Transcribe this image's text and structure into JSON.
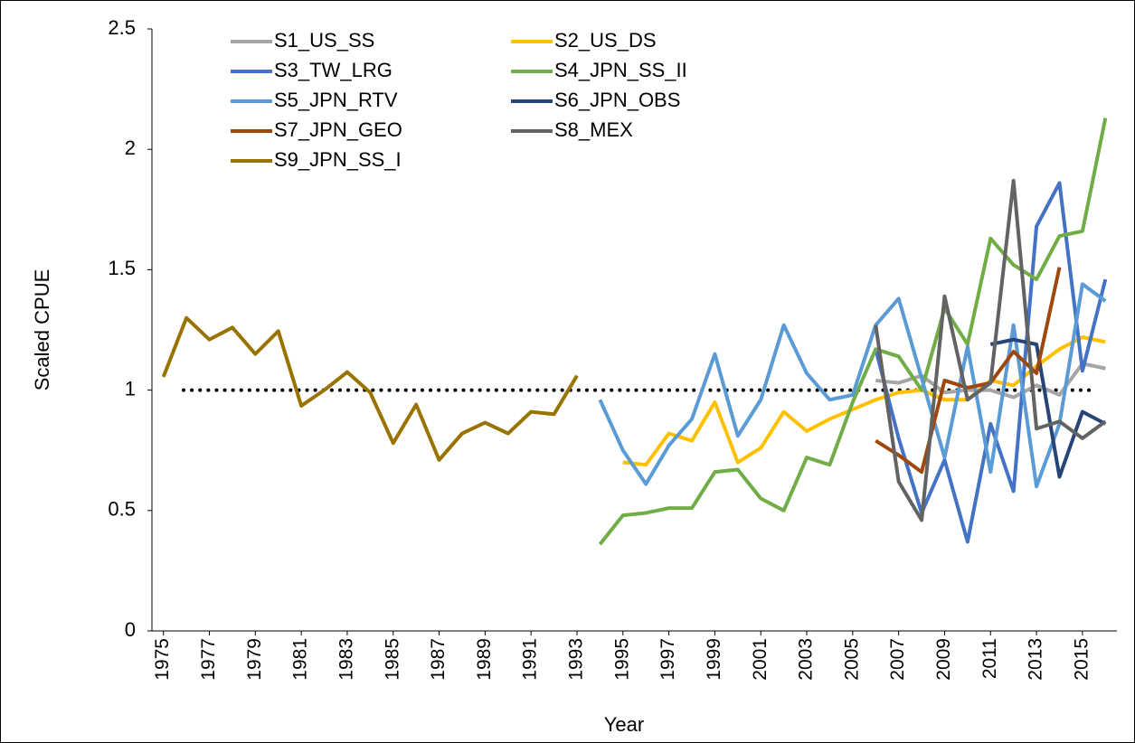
{
  "chart_data": {
    "type": "line",
    "x": [
      1975,
      1976,
      1977,
      1978,
      1979,
      1980,
      1981,
      1982,
      1983,
      1984,
      1985,
      1986,
      1987,
      1988,
      1989,
      1990,
      1991,
      1992,
      1993,
      1994,
      1995,
      1996,
      1997,
      1998,
      1999,
      2000,
      2001,
      2002,
      2003,
      2004,
      2005,
      2006,
      2007,
      2008,
      2009,
      2010,
      2011,
      2012,
      2013,
      2014,
      2015,
      2016
    ],
    "xlim": [
      1974.5,
      2016.5
    ],
    "xticks": [
      1975,
      1977,
      1979,
      1981,
      1983,
      1985,
      1987,
      1989,
      1991,
      1993,
      1995,
      1997,
      1999,
      2001,
      2003,
      2005,
      2007,
      2009,
      2011,
      2013,
      2015
    ],
    "ylim": [
      0,
      2.5
    ],
    "yticks": [
      0,
      0.5,
      1,
      1.5,
      2,
      2.5
    ],
    "xlabel": "Year",
    "ylabel": "Scaled CPUE",
    "reference_line": 1,
    "grid": false,
    "legend": "upper left",
    "series": [
      {
        "name": "S1_US_SS",
        "color": "#a5a5a5",
        "values": [
          null,
          null,
          null,
          null,
          null,
          null,
          null,
          null,
          null,
          null,
          null,
          null,
          null,
          null,
          null,
          null,
          null,
          null,
          null,
          null,
          null,
          null,
          null,
          null,
          null,
          null,
          null,
          null,
          null,
          null,
          null,
          1.04,
          1.03,
          1.06,
          0.99,
          1.0,
          1.0,
          0.97,
          1.02,
          0.98,
          1.11,
          1.09
        ]
      },
      {
        "name": "S2_US_DS",
        "color": "#ffc000",
        "values": [
          null,
          null,
          null,
          null,
          null,
          null,
          null,
          null,
          null,
          null,
          null,
          null,
          null,
          null,
          null,
          null,
          null,
          null,
          null,
          null,
          0.7,
          0.69,
          0.82,
          0.79,
          0.95,
          0.7,
          0.76,
          0.91,
          0.83,
          0.88,
          0.92,
          0.96,
          0.99,
          1.0,
          0.96,
          0.96,
          1.04,
          1.02,
          1.1,
          1.17,
          1.22,
          1.2
        ]
      },
      {
        "name": "S3_TW_LRG",
        "color": "#4472c4",
        "values": [
          null,
          null,
          null,
          null,
          null,
          null,
          null,
          null,
          null,
          null,
          null,
          null,
          null,
          null,
          null,
          null,
          null,
          null,
          null,
          null,
          null,
          null,
          null,
          null,
          null,
          null,
          null,
          null,
          null,
          null,
          null,
          1.17,
          0.8,
          0.49,
          0.71,
          0.37,
          0.86,
          0.58,
          1.68,
          1.86,
          1.08,
          1.46
        ]
      },
      {
        "name": "S4_JPN_SS_II",
        "color": "#70ad47",
        "values": [
          null,
          null,
          null,
          null,
          null,
          null,
          null,
          null,
          null,
          null,
          null,
          null,
          null,
          null,
          null,
          null,
          null,
          null,
          null,
          0.36,
          0.48,
          0.49,
          0.51,
          0.51,
          0.66,
          0.67,
          0.55,
          0.5,
          0.72,
          0.69,
          0.95,
          1.17,
          1.14,
          1.0,
          1.34,
          1.19,
          1.63,
          1.52,
          1.46,
          1.64,
          1.66,
          2.13
        ]
      },
      {
        "name": "S5_JPN_RTV",
        "color": "#5b9bd5",
        "values": [
          null,
          null,
          null,
          null,
          null,
          null,
          null,
          null,
          null,
          null,
          null,
          null,
          null,
          null,
          null,
          null,
          null,
          null,
          null,
          0.96,
          0.75,
          0.61,
          0.77,
          0.88,
          1.15,
          0.81,
          0.96,
          1.27,
          1.07,
          0.96,
          0.98,
          1.27,
          1.38,
          1.05,
          0.72,
          1.18,
          0.66,
          1.27,
          0.6,
          0.86,
          1.44,
          1.37
        ]
      },
      {
        "name": "S6_JPN_OBS",
        "color": "#264478",
        "values": [
          null,
          null,
          null,
          null,
          null,
          null,
          null,
          null,
          null,
          null,
          null,
          null,
          null,
          null,
          null,
          null,
          null,
          null,
          null,
          null,
          null,
          null,
          null,
          null,
          null,
          null,
          null,
          null,
          null,
          null,
          null,
          null,
          null,
          null,
          null,
          null,
          1.19,
          1.21,
          1.19,
          0.64,
          0.91,
          0.86
        ]
      },
      {
        "name": "S7_JPN_GEO",
        "color": "#9e480e",
        "values": [
          null,
          null,
          null,
          null,
          null,
          null,
          null,
          null,
          null,
          null,
          null,
          null,
          null,
          null,
          null,
          null,
          null,
          null,
          null,
          null,
          null,
          null,
          null,
          null,
          null,
          null,
          null,
          null,
          null,
          null,
          null,
          0.79,
          0.73,
          0.66,
          1.04,
          1.01,
          1.03,
          1.16,
          1.07,
          1.51,
          null,
          null
        ]
      },
      {
        "name": "S8_MEX",
        "color": "#636363",
        "values": [
          null,
          null,
          null,
          null,
          null,
          null,
          null,
          null,
          null,
          null,
          null,
          null,
          null,
          null,
          null,
          null,
          null,
          null,
          null,
          null,
          null,
          null,
          null,
          null,
          null,
          null,
          null,
          null,
          null,
          null,
          null,
          1.27,
          0.62,
          0.46,
          1.39,
          0.96,
          1.03,
          1.87,
          0.84,
          0.87,
          0.8,
          0.87
        ]
      },
      {
        "name": "S9_JPN_SS_I",
        "color": "#997300",
        "values": [
          1.055,
          1.3,
          1.21,
          1.26,
          1.15,
          1.245,
          0.935,
          1.0,
          1.075,
          0.99,
          0.78,
          0.94,
          0.71,
          0.82,
          0.865,
          0.82,
          0.91,
          0.9,
          1.06,
          null,
          null,
          null,
          null,
          null,
          null,
          null,
          null,
          null,
          null,
          null,
          null,
          null,
          null,
          null,
          null,
          null,
          null,
          null,
          null,
          null,
          null,
          null
        ]
      }
    ]
  }
}
